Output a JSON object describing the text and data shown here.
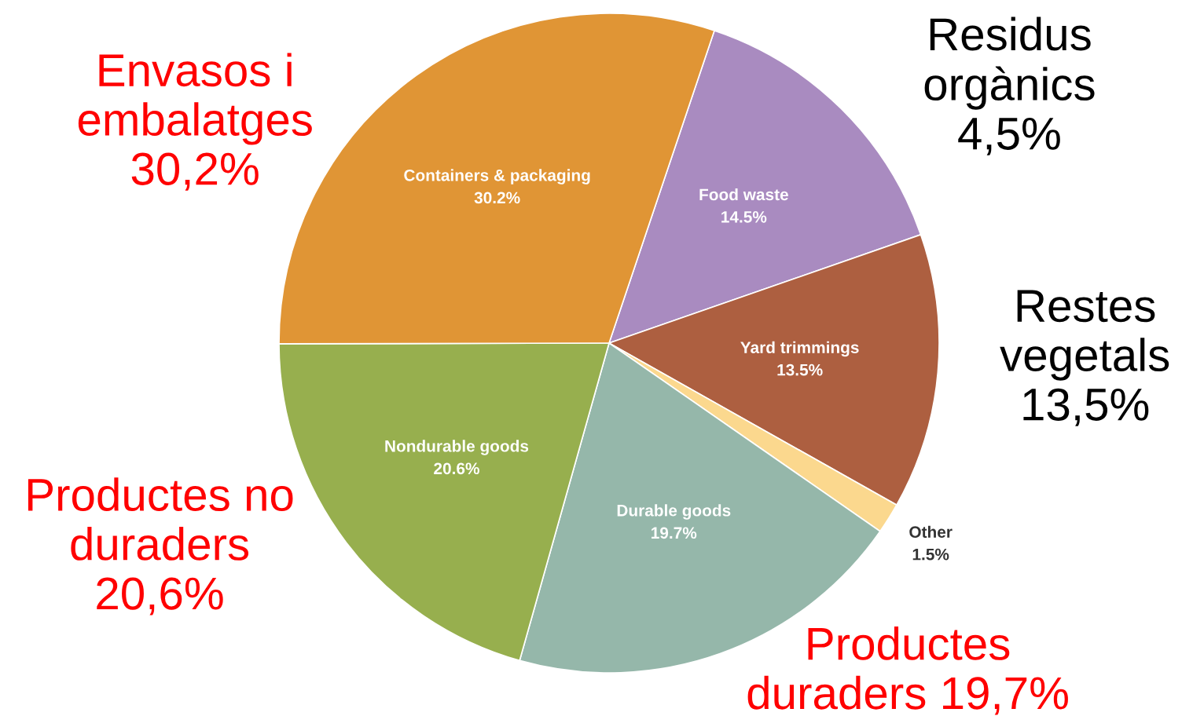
{
  "chart_data": {
    "type": "pie",
    "categories": [
      "Food waste",
      "Yard trimmings",
      "Other",
      "Durable goods",
      "Nondurable goods",
      "Containers & packaging"
    ],
    "values": [
      14.5,
      13.5,
      1.5,
      19.7,
      20.6,
      30.2
    ],
    "colors": [
      "#a98bc0",
      "#ad5f40",
      "#fbd88e",
      "#95b7aa",
      "#97af4e",
      "#e09535"
    ],
    "value_labels": [
      "14.5%",
      "13.5%",
      "1.5%",
      "19.7%",
      "20.6%",
      "30.2%"
    ],
    "annotations": [
      "Envasos i\nembalatges\n30,2%",
      "Residus\norgànics\n4,5%",
      "Restes\nvegetals\n13,5%",
      "Productes no\nduraders\n20,6%",
      "Productes\nduraders 19,7%"
    ]
  }
}
